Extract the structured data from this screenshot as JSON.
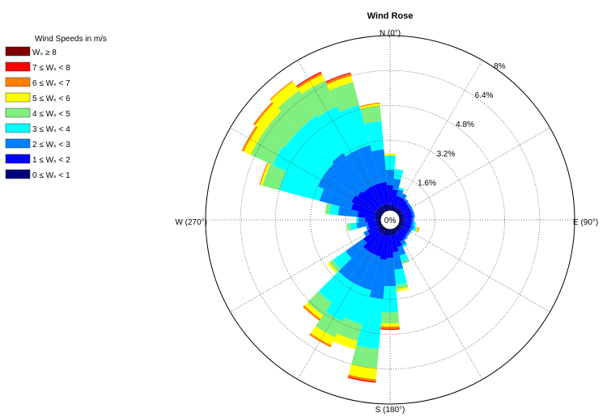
{
  "chart_data": {
    "type": "wind-rose",
    "title": "Wind Rose",
    "legend_title": "Wind Speeds in m/s",
    "legend_placement": "left",
    "axis_labels": {
      "north": "N (0°)",
      "east": "E (90°)",
      "south": "S (180°)",
      "west": "W (270°)"
    },
    "center_label": "0%",
    "radial_max_percent": 8,
    "radial_ticks": [
      {
        "value": 1.6,
        "label": "1.6%"
      },
      {
        "value": 3.2,
        "label": "3.2%"
      },
      {
        "value": 4.8,
        "label": "4.8%"
      },
      {
        "value": 6.4,
        "label": "6.4%"
      },
      {
        "value": 8,
        "label": "8%"
      }
    ],
    "bins": [
      {
        "label": "0 ≤ Wₛ < 1",
        "color": "#00007F"
      },
      {
        "label": "1 ≤ Wₛ < 2",
        "color": "#0000FF"
      },
      {
        "label": "2 ≤ Wₛ < 3",
        "color": "#007FFF"
      },
      {
        "label": "3 ≤ Wₛ < 4",
        "color": "#00FFFF"
      },
      {
        "label": "4 ≤ Wₛ < 5",
        "color": "#7FEF7F"
      },
      {
        "label": "5 ≤ Wₛ < 6",
        "color": "#FFFF00"
      },
      {
        "label": "6 ≤ Wₛ < 7",
        "color": "#FF7F00"
      },
      {
        "label": "7 ≤ Wₛ < 8",
        "color": "#FF0000"
      },
      {
        "label": "Wₛ ≥ 8",
        "color": "#7F0000"
      }
    ],
    "sector_width_deg": 10,
    "sectors": [
      {
        "direction_deg": 0,
        "values": [
          0.25,
          0.9,
          0.7,
          0.65,
          0.0,
          0.1,
          0.0,
          0.0,
          0.0
        ]
      },
      {
        "direction_deg": 10,
        "values": [
          0.25,
          0.7,
          0.5,
          0.45,
          0.0,
          0.0,
          0.0,
          0.0,
          0.0
        ]
      },
      {
        "direction_deg": 20,
        "values": [
          0.2,
          0.5,
          0.3,
          0.1,
          0.0,
          0.0,
          0.0,
          0.0,
          0.0
        ]
      },
      {
        "direction_deg": 30,
        "values": [
          0.2,
          0.5,
          0.2,
          0.0,
          0.0,
          0.0,
          0.0,
          0.0,
          0.0
        ]
      },
      {
        "direction_deg": 40,
        "values": [
          0.2,
          0.45,
          0.1,
          0.0,
          0.0,
          0.0,
          0.0,
          0.0,
          0.0
        ]
      },
      {
        "direction_deg": 50,
        "values": [
          0.2,
          0.4,
          0.1,
          0.0,
          0.0,
          0.0,
          0.0,
          0.0,
          0.0
        ]
      },
      {
        "direction_deg": 60,
        "values": [
          0.2,
          0.4,
          0.1,
          0.0,
          0.0,
          0.0,
          0.0,
          0.0,
          0.0
        ]
      },
      {
        "direction_deg": 70,
        "values": [
          0.2,
          0.4,
          0.1,
          0.0,
          0.0,
          0.0,
          0.0,
          0.0,
          0.0
        ]
      },
      {
        "direction_deg": 80,
        "values": [
          0.2,
          0.4,
          0.1,
          0.0,
          0.0,
          0.0,
          0.0,
          0.0,
          0.0
        ]
      },
      {
        "direction_deg": 90,
        "values": [
          0.2,
          0.35,
          0.1,
          0.0,
          0.0,
          0.0,
          0.0,
          0.0,
          0.0
        ]
      },
      {
        "direction_deg": 100,
        "values": [
          0.2,
          0.35,
          0.1,
          0.1,
          0.0,
          0.0,
          0.0,
          0.0,
          0.0
        ]
      },
      {
        "direction_deg": 110,
        "values": [
          0.2,
          0.35,
          0.15,
          0.1,
          0.05,
          0.05,
          0.05,
          0.0,
          0.0
        ]
      },
      {
        "direction_deg": 120,
        "values": [
          0.2,
          0.35,
          0.1,
          0.0,
          0.0,
          0.0,
          0.0,
          0.0,
          0.0
        ]
      },
      {
        "direction_deg": 130,
        "values": [
          0.2,
          0.35,
          0.1,
          0.0,
          0.0,
          0.0,
          0.0,
          0.0,
          0.0
        ]
      },
      {
        "direction_deg": 140,
        "values": [
          0.2,
          0.4,
          0.1,
          0.0,
          0.0,
          0.0,
          0.0,
          0.0,
          0.0
        ]
      },
      {
        "direction_deg": 150,
        "values": [
          0.2,
          0.45,
          0.2,
          0.1,
          0.0,
          0.0,
          0.0,
          0.0,
          0.0
        ]
      },
      {
        "direction_deg": 160,
        "values": [
          0.25,
          0.6,
          0.4,
          0.3,
          0.1,
          0.0,
          0.0,
          0.0,
          0.0
        ]
      },
      {
        "direction_deg": 170,
        "values": [
          0.25,
          0.8,
          0.8,
          0.7,
          0.2,
          0.1,
          0.0,
          0.0,
          0.0
        ]
      },
      {
        "direction_deg": 180,
        "values": [
          0.3,
          1.0,
          1.3,
          1.2,
          0.5,
          0.15,
          0.1,
          0.05,
          0.0
        ]
      },
      {
        "direction_deg": 190,
        "values": [
          0.3,
          1.1,
          1.8,
          2.3,
          0.9,
          0.5,
          0.1,
          0.05,
          0.0
        ]
      },
      {
        "direction_deg": 200,
        "values": [
          0.3,
          1.0,
          1.6,
          1.6,
          0.8,
          0.4,
          0.0,
          0.0,
          0.0
        ]
      },
      {
        "direction_deg": 210,
        "values": [
          0.3,
          1.0,
          1.6,
          1.8,
          0.8,
          0.4,
          0.1,
          0.0,
          0.0
        ]
      },
      {
        "direction_deg": 220,
        "values": [
          0.3,
          1.0,
          1.6,
          1.3,
          0.7,
          0.2,
          0.1,
          0.0,
          0.0
        ]
      },
      {
        "direction_deg": 230,
        "values": [
          0.25,
          0.8,
          1.0,
          0.7,
          0.2,
          0.1,
          0.0,
          0.0,
          0.0
        ]
      },
      {
        "direction_deg": 240,
        "values": [
          0.2,
          0.5,
          0.2,
          0.0,
          0.0,
          0.0,
          0.0,
          0.0,
          0.0
        ]
      },
      {
        "direction_deg": 250,
        "values": [
          0.2,
          0.4,
          0.1,
          0.0,
          0.0,
          0.0,
          0.0,
          0.0,
          0.0
        ]
      },
      {
        "direction_deg": 260,
        "values": [
          0.2,
          0.4,
          0.5,
          0.3,
          0.15,
          0.0,
          0.0,
          0.0,
          0.0
        ]
      },
      {
        "direction_deg": 270,
        "values": [
          0.2,
          0.5,
          0.3,
          0.1,
          0.0,
          0.0,
          0.0,
          0.0,
          0.0
        ]
      },
      {
        "direction_deg": 280,
        "values": [
          0.25,
          0.8,
          0.9,
          0.4,
          0.2,
          0.0,
          0.0,
          0.0,
          0.0
        ]
      },
      {
        "direction_deg": 290,
        "values": [
          0.3,
          1.1,
          1.5,
          1.9,
          0.8,
          0.1,
          0.05,
          0.0,
          0.0
        ]
      },
      {
        "direction_deg": 300,
        "values": [
          0.3,
          1.2,
          1.7,
          2.3,
          1.1,
          0.35,
          0.1,
          0.0,
          0.0
        ]
      },
      {
        "direction_deg": 310,
        "values": [
          0.3,
          1.1,
          1.8,
          2.2,
          1.2,
          0.5,
          0.1,
          0.0,
          0.0
        ]
      },
      {
        "direction_deg": 320,
        "values": [
          0.3,
          1.0,
          2.0,
          2.1,
          1.4,
          0.5,
          0.05,
          0.0,
          0.0
        ]
      },
      {
        "direction_deg": 330,
        "values": [
          0.3,
          1.0,
          1.8,
          2.2,
          1.3,
          0.3,
          0.1,
          0.05,
          0.0
        ]
      },
      {
        "direction_deg": 340,
        "values": [
          0.3,
          1.0,
          1.8,
          1.9,
          1.1,
          0.3,
          0.1,
          0.05,
          0.0
        ]
      },
      {
        "direction_deg": 350,
        "values": [
          0.3,
          1.0,
          1.5,
          1.3,
          0.7,
          0.1,
          0.05,
          0.0,
          0.0
        ]
      }
    ]
  }
}
